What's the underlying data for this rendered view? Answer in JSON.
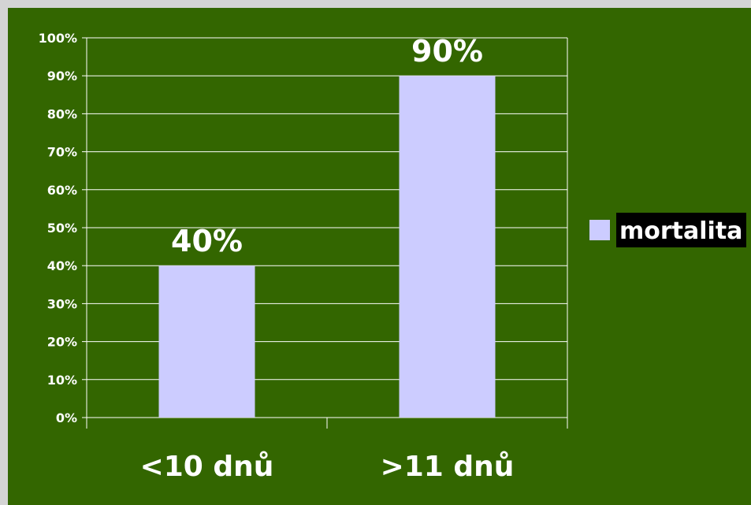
{
  "chart_data": {
    "type": "bar",
    "categories": [
      "<10 dnů",
      ">11 dnů"
    ],
    "series": [
      {
        "name": "mortalita",
        "values": [
          40,
          90
        ]
      }
    ],
    "data_labels": [
      "40%",
      "90%"
    ],
    "yticks": [
      0,
      10,
      20,
      30,
      40,
      50,
      60,
      70,
      80,
      90,
      100
    ],
    "ytick_labels": [
      "0%",
      "10%",
      "20%",
      "30%",
      "40%",
      "50%",
      "60%",
      "70%",
      "80%",
      "90%",
      "100%"
    ],
    "ylim": [
      0,
      100
    ],
    "grid": true,
    "legend_position": "right",
    "colors": {
      "background": "#336600",
      "bar": "#ccccff",
      "axis": "#ffffff",
      "legend_label_bg": "#000000"
    }
  }
}
